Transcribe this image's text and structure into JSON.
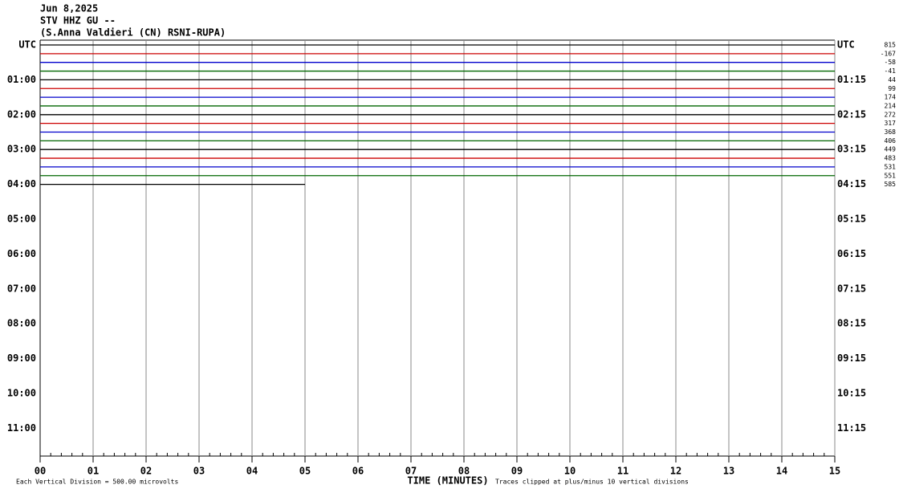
{
  "chart_data": {
    "type": "helicorder",
    "header": [
      "Jun 8,2025",
      "STV HHZ GU --",
      "(S.Anna Valdieri (CN) RSNI-RUPA)"
    ],
    "x_label": "TIME (MINUTES)",
    "footer_left": "Each Vertical Division =  500.00 microvolts",
    "footer_right": "Traces clipped at plus/minus 10 vertical divisions",
    "xlim": [
      0,
      15
    ],
    "xticks": [
      {
        "value": 0,
        "label": "00"
      },
      {
        "value": 1,
        "label": "01"
      },
      {
        "value": 2,
        "label": "02"
      },
      {
        "value": 3,
        "label": "03"
      },
      {
        "value": 4,
        "label": "04"
      },
      {
        "value": 5,
        "label": "05"
      },
      {
        "value": 6,
        "label": "06"
      },
      {
        "value": 7,
        "label": "07"
      },
      {
        "value": 8,
        "label": "08"
      },
      {
        "value": 9,
        "label": "09"
      },
      {
        "value": 10,
        "label": "10"
      },
      {
        "value": 11,
        "label": "11"
      },
      {
        "value": 12,
        "label": "12"
      },
      {
        "value": 13,
        "label": "13"
      },
      {
        "value": 14,
        "label": "14"
      },
      {
        "value": 15,
        "label": "15"
      }
    ],
    "row_labels_left": [
      "UTC",
      "01:00",
      "02:00",
      "03:00",
      "04:00",
      "05:00",
      "06:00",
      "07:00",
      "08:00",
      "09:00",
      "10:00",
      "11:00"
    ],
    "row_labels_right": [
      "UTC",
      "01:15",
      "02:15",
      "03:15",
      "04:15",
      "05:15",
      "06:15",
      "07:15",
      "08:15",
      "09:15",
      "10:15",
      "11:15"
    ],
    "traces": [
      {
        "color": "#000000",
        "offset": 815,
        "end": 15
      },
      {
        "color": "#cc0000",
        "offset": -167,
        "end": 15
      },
      {
        "color": "#0000cc",
        "offset": -58,
        "end": 15
      },
      {
        "color": "#006600",
        "offset": -41,
        "end": 15
      },
      {
        "color": "#000000",
        "offset": 44,
        "end": 15
      },
      {
        "color": "#cc0000",
        "offset": 99,
        "end": 15
      },
      {
        "color": "#0000cc",
        "offset": 174,
        "end": 15
      },
      {
        "color": "#006600",
        "offset": 214,
        "end": 15
      },
      {
        "color": "#000000",
        "offset": 272,
        "end": 15
      },
      {
        "color": "#cc0000",
        "offset": 317,
        "end": 15
      },
      {
        "color": "#0000cc",
        "offset": 368,
        "end": 15
      },
      {
        "color": "#006600",
        "offset": 406,
        "end": 15
      },
      {
        "color": "#000000",
        "offset": 449,
        "end": 15
      },
      {
        "color": "#cc0000",
        "offset": 483,
        "end": 15
      },
      {
        "color": "#0000cc",
        "offset": 531,
        "end": 15
      },
      {
        "color": "#006600",
        "offset": 551,
        "end": 15
      },
      {
        "color": "#000000",
        "offset": 585,
        "end": 5
      }
    ]
  }
}
